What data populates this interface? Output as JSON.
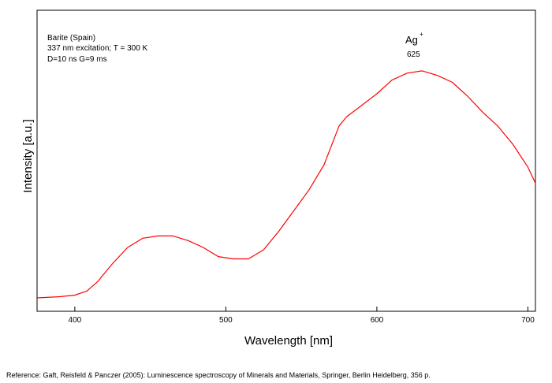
{
  "chart_data": {
    "type": "line",
    "xlabel": "Wavelength [nm]",
    "ylabel": "Intensity [a.u.]",
    "xlim": [
      375,
      705
    ],
    "ylim": [
      0,
      1.0
    ],
    "x_ticks": [
      400,
      500,
      600,
      700
    ],
    "y_ticks_labeled": false,
    "grid": false,
    "annotation_lines": [
      "Barite (Spain)",
      "337 nm excitation; T = 300 K",
      "D=10 ns G=9 ms"
    ],
    "peak_label": {
      "ion": "Ag",
      "superscript": "+",
      "wavelength_text": "625",
      "x": 625,
      "y": 0.99
    },
    "series": [
      {
        "color": "#ff0000",
        "x": [
          375,
          390,
          400,
          408,
          415,
          425,
          435,
          445,
          455,
          465,
          475,
          485,
          495,
          505,
          515,
          525,
          535,
          545,
          555,
          565,
          575,
          580,
          590,
          600,
          610,
          620,
          630,
          640,
          650,
          660,
          670,
          680,
          690,
          700,
          705
        ],
        "y": [
          0.0,
          0.005,
          0.012,
          0.03,
          0.07,
          0.15,
          0.22,
          0.26,
          0.27,
          0.27,
          0.25,
          0.22,
          0.18,
          0.17,
          0.17,
          0.21,
          0.29,
          0.38,
          0.47,
          0.58,
          0.75,
          0.79,
          0.84,
          0.89,
          0.95,
          0.98,
          0.99,
          0.97,
          0.94,
          0.88,
          0.81,
          0.75,
          0.67,
          0.57,
          0.5
        ]
      }
    ]
  },
  "reference_text": "Reference: Gaft, Reisfeld & Panczer (2005): Luminescence spectroscopy of Minerals and Materials, Springer, Berlin Heidelberg, 356 p."
}
